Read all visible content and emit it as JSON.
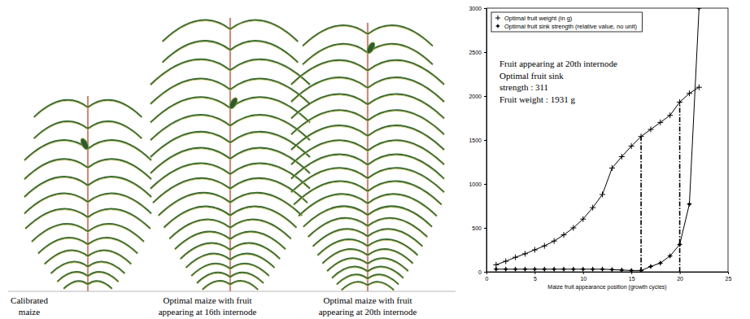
{
  "chart_data": {
    "type": "line",
    "x": [
      1,
      2,
      3,
      4,
      5,
      6,
      7,
      8,
      9,
      10,
      11,
      12,
      13,
      14,
      15,
      16,
      17,
      18,
      19,
      20,
      21,
      22
    ],
    "series": [
      {
        "name": "Optimal fruit weight (in g)",
        "color": "#000000",
        "marker": "plus",
        "values": [
          80,
          120,
          165,
          205,
          250,
          295,
          350,
          420,
          500,
          600,
          730,
          880,
          1180,
          1310,
          1430,
          1540,
          1620,
          1700,
          1780,
          1931,
          2030,
          2100
        ]
      },
      {
        "name": "Optimal fruit sink strength (relative value, no unit)",
        "color": "#000000",
        "marker": "star",
        "values": [
          30,
          30,
          30,
          30,
          30,
          30,
          30,
          30,
          30,
          30,
          30,
          30,
          25,
          20,
          15,
          15,
          60,
          100,
          180,
          311,
          770,
          3000
        ]
      }
    ],
    "xlim": [
      0,
      25
    ],
    "xticks": [
      0,
      5,
      10,
      15,
      20,
      25
    ],
    "ylim": [
      0,
      3000
    ],
    "yticks": [
      0,
      500,
      1000,
      1500,
      2000,
      2500,
      3000
    ],
    "xlabel": "Maize fruit appearance position (growth cycles)",
    "legend": "upper left",
    "annotation": [
      "Fruit appearing at 20th internode",
      "Optimal fruit sink",
      "strength : 311",
      "Fruit weight : 1931 g"
    ],
    "vlines": [
      16,
      20
    ]
  },
  "figure": {
    "plants": [
      {
        "caption": [
          "Calibrated",
          "maize"
        ]
      },
      {
        "caption": [
          "Optimal maize with fruit",
          "appearing at 16th internode"
        ]
      },
      {
        "caption": [
          "Optimal maize with fruit",
          "appearing at 20th internode"
        ]
      }
    ]
  }
}
